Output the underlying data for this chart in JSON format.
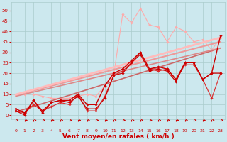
{
  "bg_color": "#cce8ee",
  "grid_color": "#aacccc",
  "xlabel": "Vent moyen/en rafales ( km/h )",
  "x_ticks": [
    0,
    1,
    2,
    3,
    4,
    5,
    6,
    7,
    8,
    9,
    10,
    11,
    12,
    13,
    14,
    15,
    16,
    17,
    18,
    19,
    20,
    21,
    22,
    23
  ],
  "ylim": [
    -2,
    54
  ],
  "xlim": [
    -0.5,
    23.5
  ],
  "yticks": [
    0,
    5,
    10,
    15,
    20,
    25,
    30,
    35,
    40,
    45,
    50
  ],
  "series": [
    {
      "x": [
        0,
        1,
        2,
        3,
        4,
        5,
        6,
        7,
        8,
        9,
        10,
        11,
        12,
        13,
        14,
        15,
        16,
        17,
        18,
        19,
        20,
        21,
        22,
        23
      ],
      "y": [
        10,
        10,
        10,
        9,
        8,
        8,
        8,
        9,
        10,
        9,
        14,
        19,
        48,
        44,
        51,
        43,
        42,
        35,
        42,
        40,
        35,
        36,
        31,
        37
      ],
      "color": "#ffaaaa",
      "lw": 0.8,
      "marker": "D",
      "ms": 1.8,
      "alpha": 1.0,
      "zorder": 2
    },
    {
      "x": [
        0,
        23
      ],
      "y": [
        1.5,
        32
      ],
      "color": "#cc6666",
      "lw": 1.2,
      "marker": null,
      "ms": 0,
      "alpha": 1.0,
      "zorder": 3
    },
    {
      "x": [
        0,
        23
      ],
      "y": [
        9,
        32
      ],
      "color": "#dd8888",
      "lw": 1.2,
      "marker": null,
      "ms": 0,
      "alpha": 1.0,
      "zorder": 3
    },
    {
      "x": [
        0,
        23
      ],
      "y": [
        9.5,
        35
      ],
      "color": "#ee9999",
      "lw": 1.5,
      "marker": null,
      "ms": 0,
      "alpha": 1.0,
      "zorder": 3
    },
    {
      "x": [
        0,
        23
      ],
      "y": [
        9.8,
        37
      ],
      "color": "#ffbbbb",
      "lw": 2.0,
      "marker": null,
      "ms": 0,
      "alpha": 1.0,
      "zorder": 3
    },
    {
      "x": [
        0,
        1,
        2,
        3,
        4,
        5,
        6,
        7,
        8,
        9,
        10,
        11,
        12,
        13,
        14,
        15,
        16,
        17,
        18,
        19,
        20,
        21,
        22,
        23
      ],
      "y": [
        2,
        0,
        7,
        1,
        6,
        7,
        6,
        9,
        3,
        3,
        8,
        19,
        20,
        25,
        29,
        21,
        22,
        21,
        16,
        25,
        25,
        17,
        20,
        20
      ],
      "color": "#cc0000",
      "lw": 0.9,
      "marker": "D",
      "ms": 1.8,
      "alpha": 1.0,
      "zorder": 5
    },
    {
      "x": [
        0,
        1,
        2,
        3,
        4,
        5,
        6,
        7,
        8,
        9,
        10,
        11,
        12,
        13,
        14,
        15,
        16,
        17,
        18,
        19,
        20,
        21,
        22,
        23
      ],
      "y": [
        3,
        1,
        7,
        2,
        6,
        7,
        7,
        10,
        5,
        5,
        14,
        20,
        22,
        26,
        30,
        22,
        23,
        22,
        17,
        25,
        25,
        17,
        20,
        38
      ],
      "color": "#cc0000",
      "lw": 1.0,
      "marker": "D",
      "ms": 1.8,
      "alpha": 1.0,
      "zorder": 5
    },
    {
      "x": [
        0,
        1,
        2,
        3,
        4,
        5,
        6,
        7,
        8,
        9,
        10,
        11,
        12,
        13,
        14,
        15,
        16,
        17,
        18,
        19,
        20,
        21,
        22,
        23
      ],
      "y": [
        2,
        1,
        5,
        2,
        4,
        6,
        5,
        10,
        2,
        2,
        9,
        19,
        21,
        25,
        30,
        22,
        21,
        22,
        17,
        24,
        24,
        17,
        8,
        20
      ],
      "color": "#dd2222",
      "lw": 0.9,
      "marker": "D",
      "ms": 1.8,
      "alpha": 0.9,
      "zorder": 4
    }
  ],
  "arrow_color": "#cc0000",
  "xlabel_color": "#cc0000",
  "tick_color": "#cc0000",
  "xlabel_fontsize": 6.5,
  "tick_fontsize_x": 4.5,
  "tick_fontsize_y": 5.0
}
